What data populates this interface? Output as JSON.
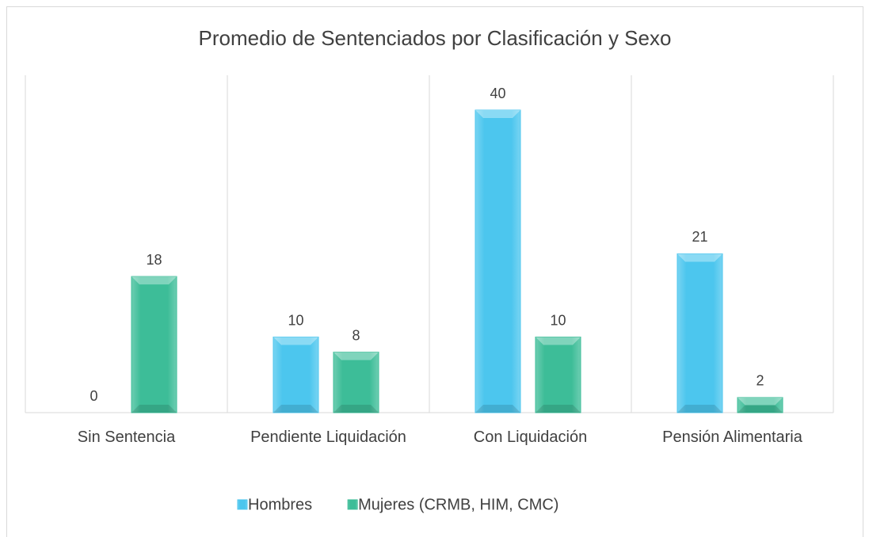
{
  "chart_data": {
    "type": "bar",
    "title": "Promedio de Sentenciados por Clasificación y Sexo",
    "categories": [
      "Sin Sentencia",
      "Pendiente Liquidación",
      "Con Liquidación",
      "Pensión Alimentaria"
    ],
    "series": [
      {
        "name": "Hombres",
        "color": "#4cc6ee",
        "values": [
          0,
          10,
          40,
          21
        ]
      },
      {
        "name": "Mujeres (CRMB, HIM, CMC)",
        "color": "#3dbd98",
        "values": [
          18,
          8,
          10,
          2
        ]
      }
    ],
    "legend": "bottom"
  }
}
